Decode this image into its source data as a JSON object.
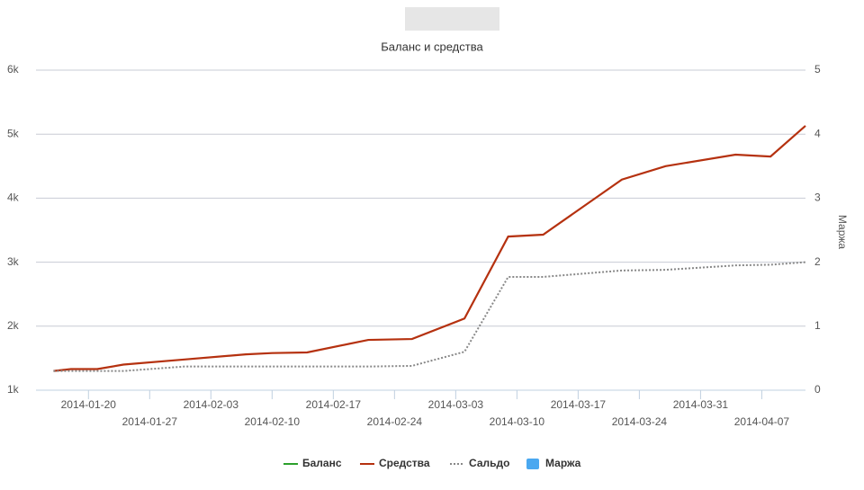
{
  "chart_data": {
    "type": "line",
    "title": "Баланс и средства",
    "y2label": "Маржа",
    "x": [
      "2014-01-16",
      "2014-01-18",
      "2014-01-21",
      "2014-01-24",
      "2014-01-31",
      "2014-02-07",
      "2014-02-10",
      "2014-02-14",
      "2014-02-21",
      "2014-02-26",
      "2014-03-04",
      "2014-03-09",
      "2014-03-13",
      "2014-03-22",
      "2014-03-27",
      "2014-04-04",
      "2014-04-08",
      "2014-04-12"
    ],
    "xlim": [
      "2014-01-14",
      "2014-04-12"
    ],
    "xticks": [
      "2014-01-20",
      "2014-01-27",
      "2014-02-03",
      "2014-02-10",
      "2014-02-17",
      "2014-02-24",
      "2014-03-03",
      "2014-03-10",
      "2014-03-17",
      "2014-03-24",
      "2014-03-31",
      "2014-04-07"
    ],
    "ylim": [
      1000,
      6000
    ],
    "yticks": [
      {
        "value": 1000,
        "label": "1k"
      },
      {
        "value": 2000,
        "label": "2k"
      },
      {
        "value": 3000,
        "label": "3k"
      },
      {
        "value": 4000,
        "label": "4k"
      },
      {
        "value": 5000,
        "label": "5k"
      },
      {
        "value": 6000,
        "label": "6k"
      }
    ],
    "y2lim": [
      0,
      5
    ],
    "y2ticks": [
      0,
      1,
      2,
      3,
      4,
      5
    ],
    "grid": true,
    "series": [
      {
        "name": "Баланс",
        "color": "#2ca02c",
        "style": "solid"
      },
      {
        "name": "Средства",
        "color": "#b5310f",
        "style": "solid",
        "values": [
          1300,
          1330,
          1330,
          1400,
          1480,
          1560,
          1580,
          1590,
          1786,
          1800,
          2120,
          3400,
          3430,
          4290,
          4500,
          4680,
          4650,
          5130
        ]
      },
      {
        "name": "Сальдо",
        "color": "#888888",
        "style": "dotted",
        "axis": "y2",
        "values": [
          0.3,
          0.3,
          0.3,
          0.3,
          0.37,
          0.37,
          0.37,
          0.37,
          0.37,
          0.38,
          0.6,
          1.77,
          1.77,
          1.87,
          1.88,
          1.95,
          1.96,
          2.0
        ]
      },
      {
        "name": "Маржа",
        "color": "#4aa8f0",
        "style": "box"
      }
    ]
  }
}
